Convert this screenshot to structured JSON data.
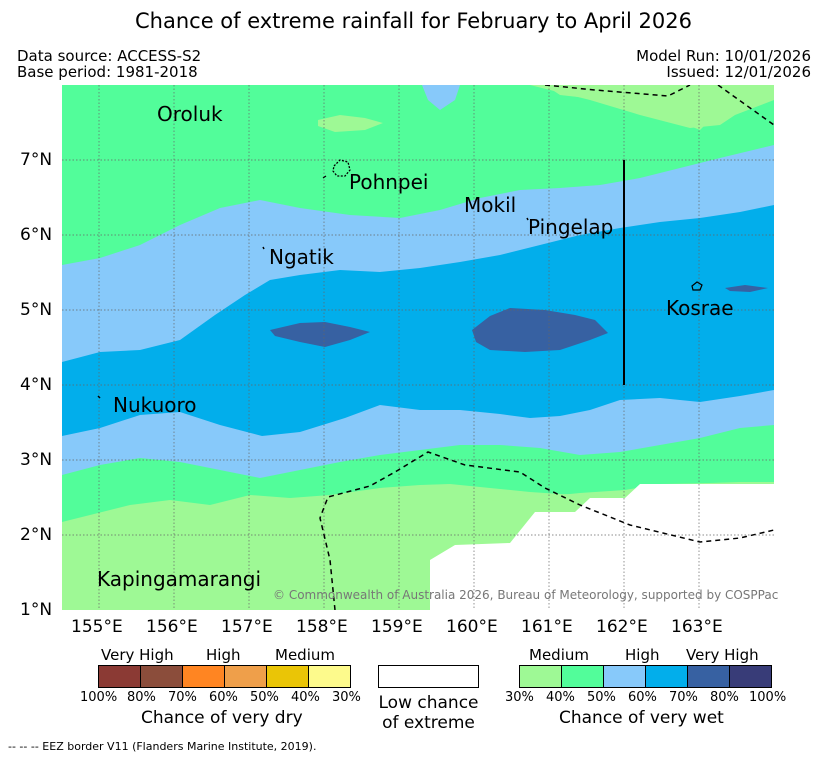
{
  "title": "Chance of extreme rainfall for February to April 2026",
  "header": {
    "data_source": "Data source: ACCESS-S2",
    "base_period": "Base period: 1981-2018",
    "model_run": "Model Run: 10/01/2026",
    "issued": "Issued: 12/01/2026"
  },
  "map": {
    "lat_labels": [
      "7°N",
      "6°N",
      "5°N",
      "4°N",
      "3°N",
      "2°N",
      "1°N"
    ],
    "lon_labels": [
      "155°E",
      "156°E",
      "157°E",
      "158°E",
      "159°E",
      "160°E",
      "161°E",
      "162°E",
      "163°E"
    ],
    "places": [
      "Oroluk",
      "Pohnpei",
      "Mokil",
      "Pingelap",
      "Ngatik",
      "Kosrae",
      "Nukuoro",
      "Kapingamarangi"
    ],
    "copyright": "© Commonwealth of Australia 2026, Bureau of Meteorology, supported by COSPPac"
  },
  "legend_dry": {
    "categories": [
      "Very High",
      "High",
      "Medium"
    ],
    "ticks": [
      "100%",
      "80%",
      "70%",
      "60%",
      "50%",
      "40%",
      "30%"
    ],
    "colors": [
      "#8b3a34",
      "#8b4d3b",
      "#ff8522",
      "#ef9f4a",
      "#eac506",
      "#fdfa8c"
    ],
    "caption": "Chance of very dry"
  },
  "legend_low": {
    "line1": "Low chance",
    "line2": "of extreme",
    "color": "#ffffff"
  },
  "legend_wet": {
    "categories": [
      "Medium",
      "High",
      "Very High"
    ],
    "ticks": [
      "30%",
      "40%",
      "50%",
      "60%",
      "70%",
      "80%",
      "100%"
    ],
    "colors": [
      "#9ef995",
      "#52fd9a",
      "#87c9fa",
      "#02aeeb",
      "#3761a2",
      "#383c78"
    ],
    "caption": "Chance of very wet"
  },
  "footnote": "--  --  -- EEZ border V11 (Flanders Marine Institute, 2019)."
}
